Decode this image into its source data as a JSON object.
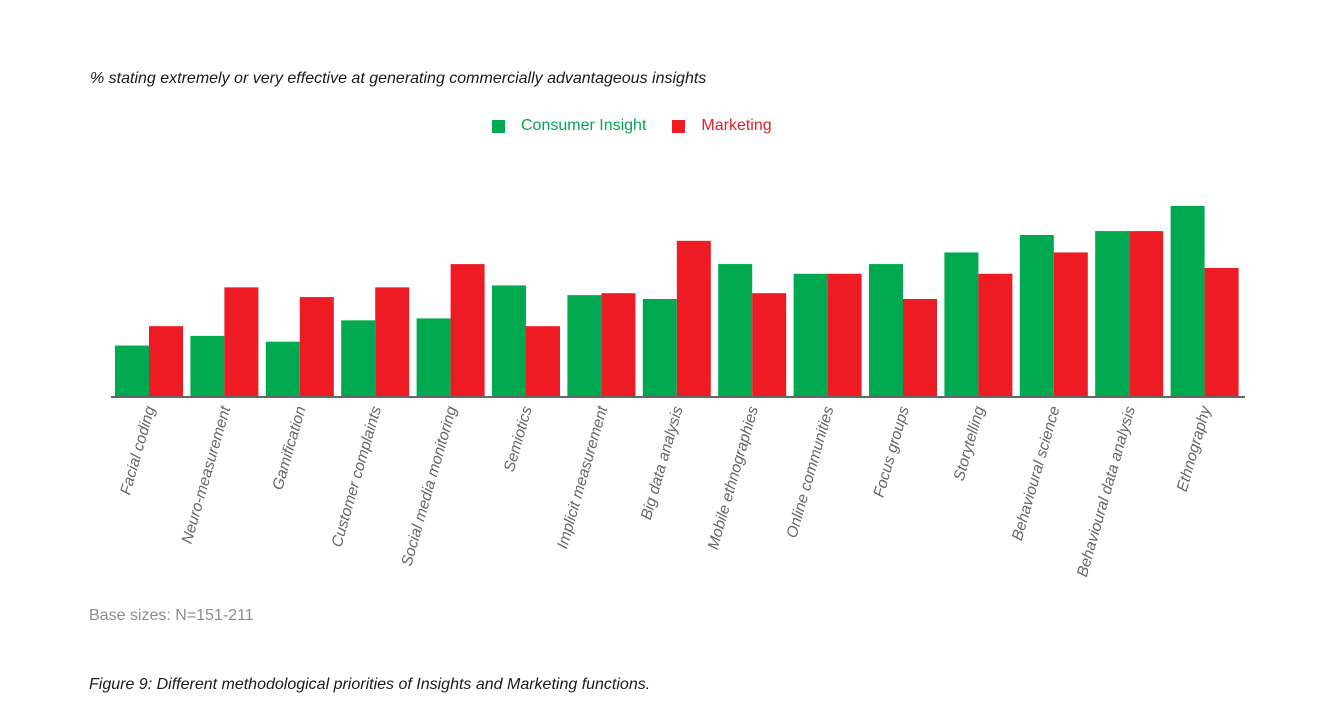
{
  "subtitle": "% stating extremely or very effective at generating commercially advantageous insights",
  "base_note": "Base sizes: N=151-211",
  "caption": "Figure 9: Different methodological priorities of Insights and Marketing functions.",
  "colors": {
    "consumer_insight": "#00a84f",
    "marketing": "#ed1c24"
  },
  "chart_data": {
    "type": "bar",
    "title": "",
    "xlabel": "",
    "ylabel": "",
    "ylim": [
      0,
      100
    ],
    "grid": false,
    "legend_position": "top-center",
    "categories": [
      "Facial coding",
      "Neuro-measurement",
      "Gamification",
      "Customer complaints",
      "Social media monitoring",
      "Semiotics",
      "Implicit measurement",
      "Big data analysis",
      "Mobile ethnographies",
      "Online communities",
      "Focus groups",
      "Storytelling",
      "Behavioural science",
      "Behavioural data analysis",
      "Ethnography"
    ],
    "series": [
      {
        "name": "Consumer Insight",
        "values": [
          26,
          31,
          28,
          39,
          40,
          57,
          52,
          50,
          68,
          63,
          68,
          74,
          83,
          85,
          98
        ]
      },
      {
        "name": "Marketing",
        "values": [
          36,
          56,
          51,
          56,
          68,
          36,
          53,
          80,
          53,
          63,
          50,
          63,
          74,
          85,
          66
        ]
      }
    ]
  }
}
